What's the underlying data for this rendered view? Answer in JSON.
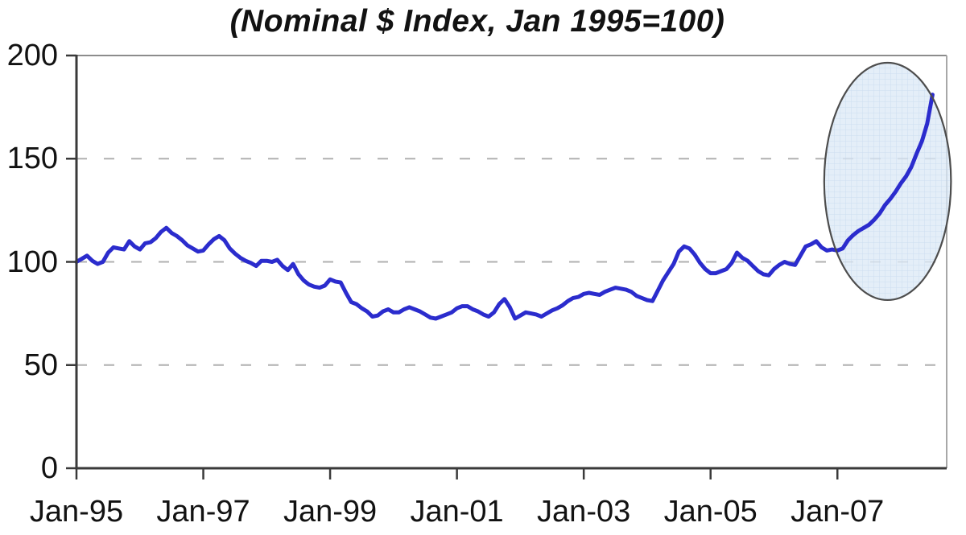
{
  "chart_data": {
    "type": "line",
    "title": "(Nominal $ Index, Jan 1995=100)",
    "xlabel": "",
    "ylabel": "",
    "ylim": [
      0,
      200
    ],
    "y_ticks": [
      0,
      50,
      100,
      150,
      200
    ],
    "y_tick_labels": [
      "0",
      "50",
      "100",
      "150",
      "200"
    ],
    "grid_values": [
      50,
      100,
      150
    ],
    "grid_style": "dashed",
    "x_tick_labels": [
      "Jan-95",
      "Jan-97",
      "Jan-99",
      "Jan-01",
      "Jan-03",
      "Jan-05",
      "Jan-07"
    ],
    "x_tick_interval_months": 24,
    "x_start": "Jan-1995",
    "x_end": "Jul-2008",
    "x_frequency": "monthly",
    "legend": "none",
    "series": [
      {
        "name": "Nominal $ Index (Jan 1995=100)",
        "color": "#2b2ccd",
        "values": [
          100,
          101.5,
          103,
          100.5,
          99,
          100,
          104.5,
          107,
          106.5,
          106,
          110,
          107.5,
          106,
          109,
          109.5,
          111.5,
          114.5,
          116.5,
          114,
          112.5,
          110.5,
          108,
          106.5,
          105,
          105.5,
          108.5,
          111,
          112.5,
          110.5,
          106.5,
          104,
          102,
          100.5,
          99.5,
          98,
          100.5,
          100.5,
          100,
          101,
          98,
          96,
          99,
          94,
          91,
          89,
          88,
          87.5,
          88.5,
          91.5,
          90.5,
          90,
          85,
          80.5,
          79.5,
          77.5,
          76,
          73.5,
          74,
          76,
          77,
          75.5,
          75.5,
          77,
          78,
          77,
          76,
          74.5,
          73,
          72.5,
          73.5,
          74.5,
          75.5,
          77.5,
          78.5,
          78.5,
          77,
          76,
          74.5,
          73.5,
          75.5,
          79.5,
          82,
          78,
          72.5,
          74,
          75.5,
          75,
          74.5,
          73.5,
          75,
          76.5,
          77.5,
          79,
          81,
          82.5,
          83,
          84.5,
          85,
          84.5,
          84,
          85.5,
          86.5,
          87.5,
          87,
          86.5,
          85.5,
          83.5,
          82.5,
          81.5,
          81,
          86,
          91,
          95,
          99,
          105,
          107.5,
          106.5,
          103.5,
          99.5,
          96.5,
          94.5,
          94.5,
          95.5,
          96.5,
          99.5,
          104.5,
          102,
          100.5,
          98,
          95.5,
          94,
          93.5,
          96.5,
          98.5,
          100,
          99,
          98.5,
          103,
          107.5,
          108.5,
          110,
          107,
          105.5,
          106,
          105.5,
          106.5,
          110.5,
          113,
          115,
          116.5,
          118,
          120.5,
          123.5,
          127.5,
          130.5,
          134,
          138,
          141.5,
          146,
          152.5,
          158.5,
          167,
          181
        ]
      }
    ],
    "annotation": {
      "shape": "ellipse",
      "purpose": "highlights 2007-2008 price spike",
      "center_month_index": 153.5,
      "center_value": 139,
      "radius_months": 12,
      "radius_value": 57.5,
      "fill": "#dde9f6",
      "grid_texture_color": "#b9cfe8",
      "stroke": "#4d4d4d"
    },
    "colors": {
      "line": "#2b2ccd",
      "axis": "#3a3a3a",
      "border_top": "#8c8c8c",
      "border_right": "#a8a8a8",
      "gridline": "#b0b0b0",
      "background": "#ffffff",
      "text": "#121212"
    }
  }
}
